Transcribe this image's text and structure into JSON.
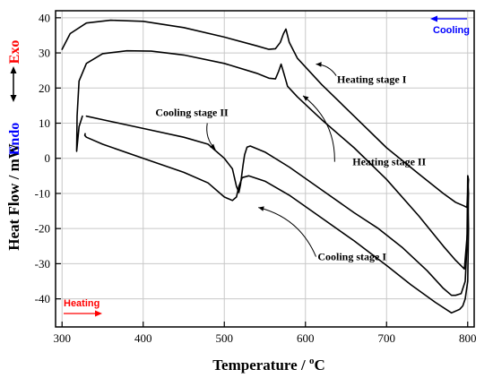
{
  "chart_data": {
    "type": "line",
    "xlabel": "Temperature / ",
    "xlabel_unit": "C",
    "xlabel_degree": "o",
    "ylabel": "Heat Flow / mW",
    "xlim": [
      292,
      808
    ],
    "ylim": [
      -48,
      42
    ],
    "xticks": [
      "300",
      "400",
      "500",
      "600",
      "700",
      "800"
    ],
    "yticks": [
      "40",
      "30",
      "20",
      "10",
      "0",
      "-10",
      "-20",
      "-30",
      "-40"
    ],
    "grid": true,
    "line_color": "#000000",
    "series": [
      {
        "x": [
          300,
          310,
          330,
          360,
          400,
          450,
          500,
          540,
          555,
          563,
          569,
          573,
          576,
          580,
          590,
          620,
          660,
          700,
          740,
          770,
          785,
          795,
          799,
          800,
          801,
          800
        ],
        "y": [
          31,
          35.5,
          38.5,
          39.3,
          39,
          37.2,
          34.5,
          32,
          31,
          31.2,
          33,
          35.5,
          36.8,
          33,
          28.5,
          21,
          12,
          3,
          -4.5,
          -10,
          -12.5,
          -13.5,
          -14,
          -10,
          -6,
          -5
        ]
      },
      {
        "x": [
          325,
          321,
          318,
          318.5,
          321,
          330,
          350,
          380,
          410,
          450,
          500,
          540,
          555,
          563,
          567,
          570,
          573,
          578,
          590,
          620,
          660,
          700,
          740,
          770,
          785,
          796,
          800,
          801,
          800
        ],
        "y": [
          12,
          9,
          2,
          12,
          22,
          27,
          29.8,
          30.6,
          30.5,
          29.4,
          27,
          24.2,
          22.8,
          22.6,
          24.8,
          26.8,
          24.5,
          20.5,
          17.5,
          11,
          3,
          -6,
          -16.5,
          -25,
          -29,
          -31.5,
          -20,
          -10,
          -5
        ]
      },
      {
        "x": [
          800,
          801,
          800,
          797,
          794,
          790,
          780,
          760,
          730,
          700,
          660,
          620,
          580,
          550,
          530,
          522,
          518,
          515,
          510,
          500,
          480,
          450,
          400,
          350,
          330,
          328,
          328.5
        ],
        "y": [
          -5,
          -20,
          -35,
          -40,
          -42,
          -43,
          -44,
          -41,
          -36,
          -30.5,
          -23.5,
          -17,
          -10.5,
          -6.5,
          -5,
          -5.5,
          -8,
          -11,
          -12,
          -11,
          -7,
          -4,
          0,
          4,
          6,
          6.5,
          7
        ]
      },
      {
        "x": [
          800,
          799,
          797,
          792,
          785,
          780,
          770,
          750,
          720,
          690,
          660,
          620,
          580,
          550,
          532,
          528,
          525,
          523,
          520,
          518,
          515,
          510,
          500,
          490,
          480,
          450,
          400,
          350,
          330
        ],
        "y": [
          -5,
          -25,
          -35,
          -38.5,
          -39,
          -39,
          -37,
          -32,
          -25.5,
          -20,
          -15.5,
          -9,
          -2.5,
          1.8,
          3.5,
          3.2,
          1,
          -2,
          -7.5,
          -9.7,
          -8,
          -3,
          0,
          2,
          4,
          6,
          8.5,
          11,
          12
        ]
      }
    ],
    "annotations": [
      {
        "text": "Heating stage I",
        "x": 639,
        "y": 21.5,
        "arrow_from": [
          638,
          23.5
        ],
        "arrow_to": [
          613,
          26.8
        ]
      },
      {
        "text": "Heating stage II",
        "x": 658,
        "y": -2,
        "arrow_from": [
          636,
          -1
        ],
        "arrow_to": [
          597,
          17.8
        ]
      },
      {
        "text": "Cooling stage II",
        "x": 415,
        "y": 12,
        "arrow_from": [
          479,
          10
        ],
        "arrow_to": [
          489,
          2.5
        ]
      },
      {
        "text": "Cooling stage I",
        "x": 615,
        "y": -29,
        "arrow_from": [
          613,
          -28
        ],
        "arrow_to": [
          542,
          -14
        ]
      }
    ]
  },
  "labels": {
    "exo": "Exo",
    "endo": "Endo",
    "cooling": "Cooling",
    "heating": "Heating"
  },
  "colors": {
    "exo": "#ff0000",
    "endo": "#0000ff",
    "cooling": "#0000ff",
    "heating": "#ff0000",
    "grid": "#c8c8c8"
  }
}
